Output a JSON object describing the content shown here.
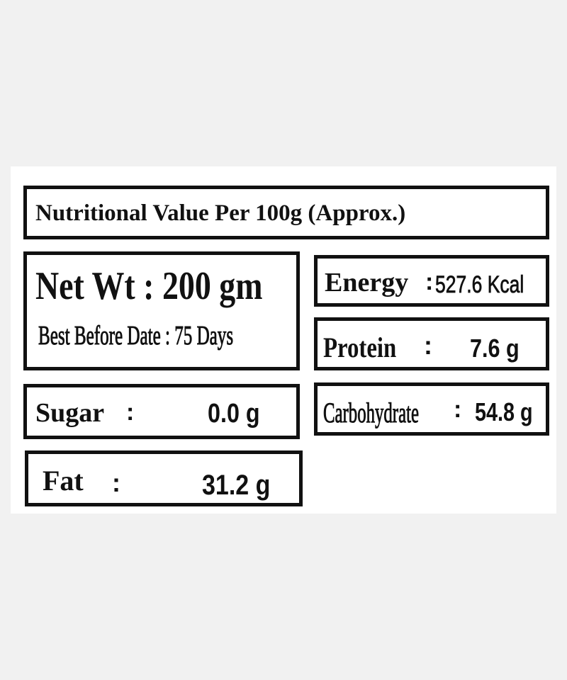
{
  "title": "Nutritional Value Per 100g  (Approx.)",
  "net_weight": "Net Wt : 200 gm",
  "best_before": "Best Before Date : 75 Days",
  "items": {
    "energy": {
      "label": "Energy",
      "separator": ":",
      "value": "527.6 Kcal"
    },
    "protein": {
      "label": "Protein",
      "separator": ":",
      "value": "7.6 g"
    },
    "carbohydrate": {
      "label": "Carbohydrate",
      "separator": ":",
      "value": "54.8 g"
    },
    "sugar": {
      "label": "Sugar",
      "separator": ":",
      "value": "0.0 g"
    },
    "fat": {
      "label": "Fat",
      "separator": ":",
      "value": "31.2 g"
    }
  }
}
